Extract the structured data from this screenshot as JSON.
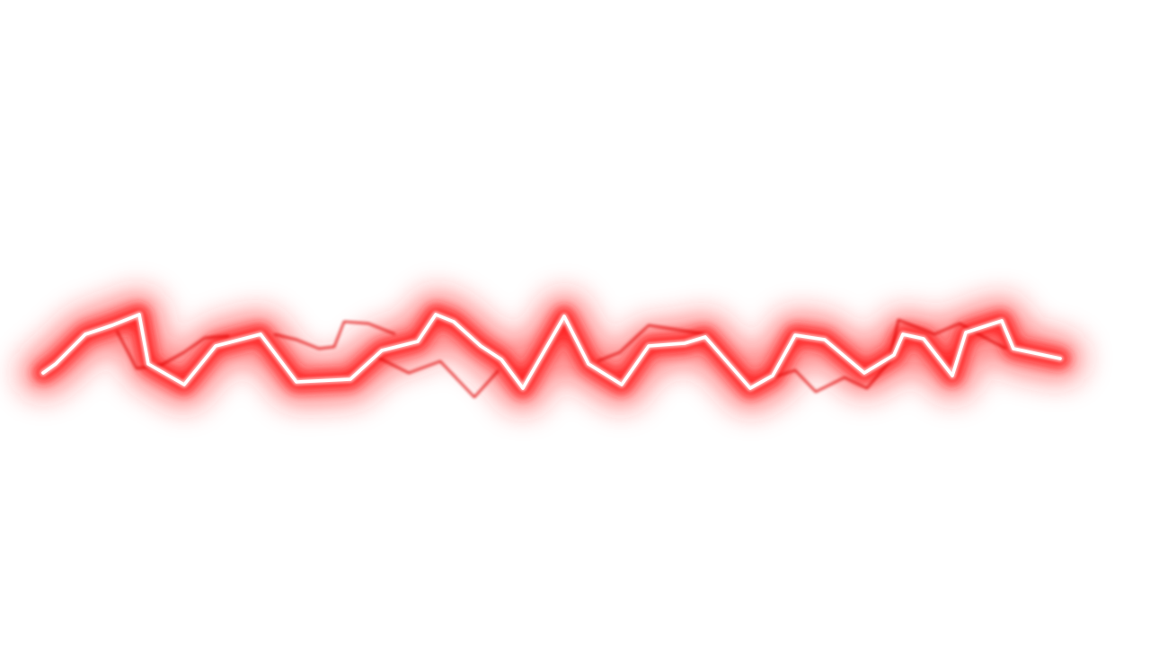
{
  "scene": {
    "subject": "lightning-bolt",
    "background_color": "#ffffff",
    "glow_color": "#ff1a1a",
    "secondary_strand_color": "#e00000",
    "core_color": "#ffffff"
  }
}
